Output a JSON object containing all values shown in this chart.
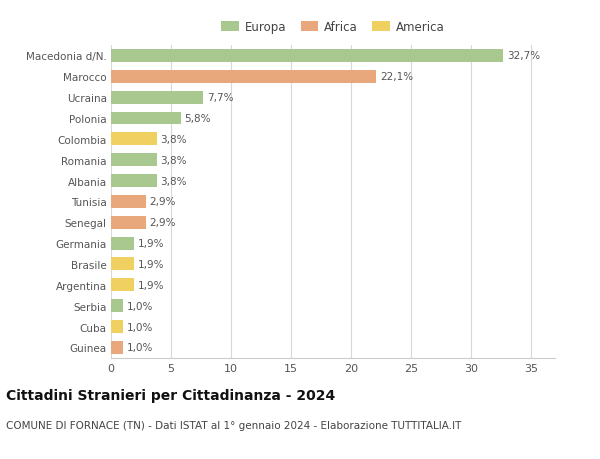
{
  "categories": [
    "Macedonia d/N.",
    "Marocco",
    "Ucraina",
    "Polonia",
    "Colombia",
    "Romania",
    "Albania",
    "Tunisia",
    "Senegal",
    "Germania",
    "Brasile",
    "Argentina",
    "Serbia",
    "Cuba",
    "Guinea"
  ],
  "values": [
    32.7,
    22.1,
    7.7,
    5.8,
    3.8,
    3.8,
    3.8,
    2.9,
    2.9,
    1.9,
    1.9,
    1.9,
    1.0,
    1.0,
    1.0
  ],
  "labels": [
    "32,7%",
    "22,1%",
    "7,7%",
    "5,8%",
    "3,8%",
    "3,8%",
    "3,8%",
    "2,9%",
    "2,9%",
    "1,9%",
    "1,9%",
    "1,9%",
    "1,0%",
    "1,0%",
    "1,0%"
  ],
  "continents": [
    "Europa",
    "Africa",
    "Europa",
    "Europa",
    "America",
    "Europa",
    "Europa",
    "Africa",
    "Africa",
    "Europa",
    "America",
    "America",
    "Europa",
    "America",
    "Africa"
  ],
  "colors": {
    "Europa": "#a8c890",
    "Africa": "#e8a87c",
    "America": "#f0d060"
  },
  "xlim": [
    0,
    37
  ],
  "xticks": [
    0,
    5,
    10,
    15,
    20,
    25,
    30,
    35
  ],
  "title1": "Cittadini Stranieri per Cittadinanza - 2024",
  "title2": "COMUNE DI FORNACE (TN) - Dati ISTAT al 1° gennaio 2024 - Elaborazione TUTTITALIA.IT",
  "background_color": "#ffffff",
  "grid_color": "#d8d8d8",
  "bar_height": 0.62,
  "label_fontsize": 7.5,
  "ytick_fontsize": 7.5,
  "xtick_fontsize": 8,
  "title1_fontsize": 10,
  "title2_fontsize": 7.5,
  "legend_fontsize": 8.5
}
